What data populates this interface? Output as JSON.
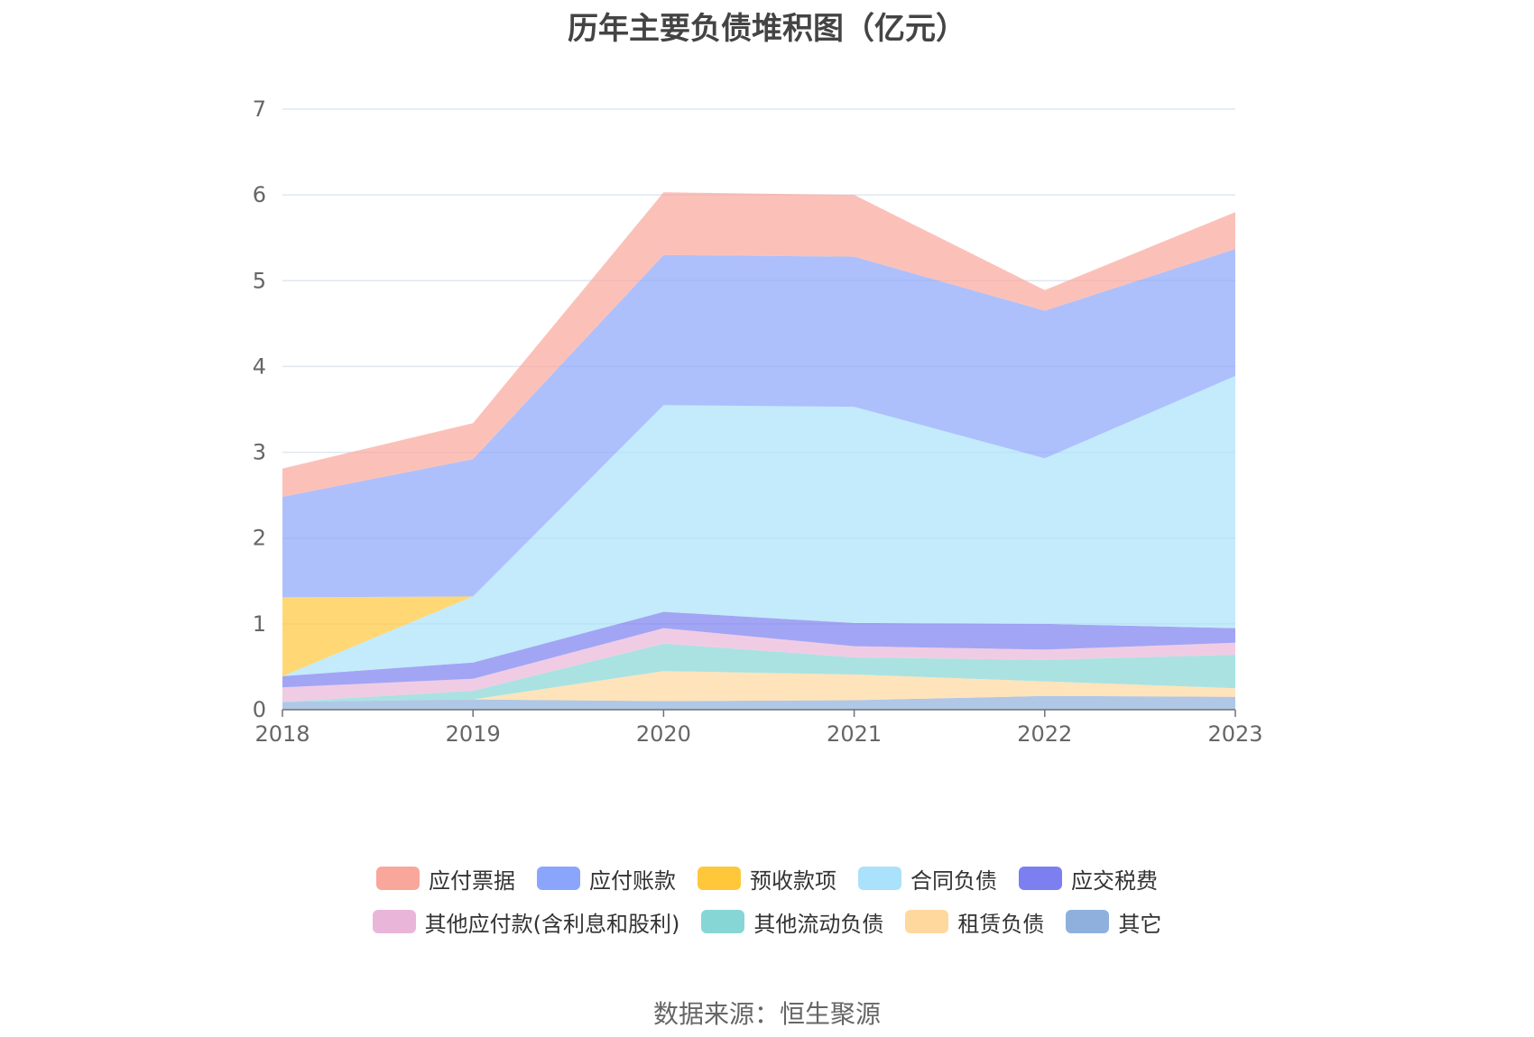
{
  "chart_data": {
    "type": "area",
    "title": "历年主要负债堆积图（亿元）",
    "stacked": true,
    "x": [
      "2018",
      "2019",
      "2020",
      "2021",
      "2022",
      "2023"
    ],
    "ylim": [
      0,
      7
    ],
    "yticks": [
      "0",
      "1",
      "2",
      "3",
      "4",
      "5",
      "6",
      "7"
    ],
    "grid": true,
    "legend_position": "bottom",
    "series": [
      {
        "name": "其它",
        "color": "#8fb0dc",
        "values": [
          0.09,
          0.12,
          0.1,
          0.11,
          0.16,
          0.15
        ]
      },
      {
        "name": "租赁负债",
        "color": "#ffd89e",
        "values": [
          0.0,
          0.0,
          0.35,
          0.3,
          0.17,
          0.1
        ]
      },
      {
        "name": "其他流动负债",
        "color": "#86d6d6",
        "values": [
          0.0,
          0.1,
          0.32,
          0.2,
          0.25,
          0.39
        ]
      },
      {
        "name": "其他应付款(含利息和股利)",
        "color": "#e9b6d9",
        "values": [
          0.17,
          0.14,
          0.18,
          0.13,
          0.12,
          0.14
        ]
      },
      {
        "name": "应交税费",
        "color": "#7b7ff0",
        "values": [
          0.13,
          0.19,
          0.19,
          0.27,
          0.3,
          0.17
        ]
      },
      {
        "name": "合同负债",
        "color": "#a9e2fa",
        "values": [
          0.0,
          0.77,
          2.41,
          2.52,
          1.93,
          2.94
        ]
      },
      {
        "name": "预收款项",
        "color": "#ffc73a",
        "values": [
          0.92,
          0.0,
          0.0,
          0.0,
          0.0,
          0.0
        ]
      },
      {
        "name": "应付账款",
        "color": "#8aa5fb",
        "values": [
          1.17,
          1.6,
          1.75,
          1.75,
          1.72,
          1.48
        ]
      },
      {
        "name": "应付票据",
        "color": "#f9a69b",
        "values": [
          0.33,
          0.42,
          0.73,
          0.72,
          0.24,
          0.43
        ]
      }
    ]
  },
  "legend": {
    "rows": [
      [
        {
          "label": "应付票据",
          "color": "#f9a69b"
        },
        {
          "label": "应付账款",
          "color": "#8aa5fb"
        },
        {
          "label": "预收款项",
          "color": "#ffc73a"
        },
        {
          "label": "合同负债",
          "color": "#a9e2fa"
        },
        {
          "label": "应交税费",
          "color": "#7b7ff0"
        }
      ],
      [
        {
          "label": "其他应付款(含利息和股利)",
          "color": "#e9b6d9"
        },
        {
          "label": "其他流动负债",
          "color": "#86d6d6"
        },
        {
          "label": "租赁负债",
          "color": "#ffd89e"
        },
        {
          "label": "其它",
          "color": "#8fb0dc"
        }
      ]
    ]
  },
  "source": "数据来源：恒生聚源"
}
